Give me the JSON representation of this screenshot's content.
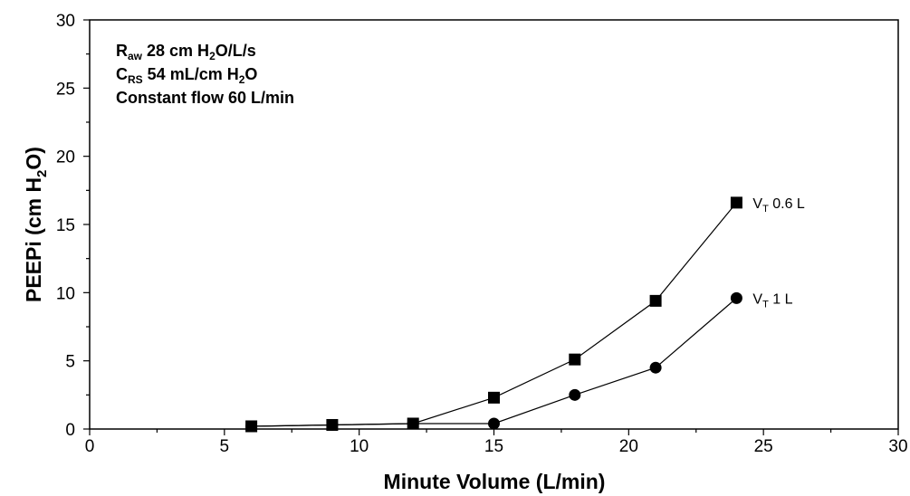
{
  "chart_data": {
    "type": "line",
    "xlabel": {
      "main": "Minute Volume (L/min)"
    },
    "ylabel": {
      "pre": "PEEPi (cm H",
      "sub": "2",
      "post": "O)"
    },
    "xlim": [
      0,
      30
    ],
    "ylim": [
      0,
      30
    ],
    "x_ticks": [
      0,
      5,
      10,
      15,
      20,
      25,
      30
    ],
    "y_ticks": [
      0,
      5,
      10,
      15,
      20,
      25,
      30
    ],
    "x_tick_labels": [
      "0",
      "5",
      "10",
      "15",
      "20",
      "25",
      "30"
    ],
    "y_tick_labels": [
      "0",
      "5",
      "10",
      "15",
      "20",
      "25",
      "30"
    ],
    "grid": false,
    "annotations": [
      {
        "pre": "R",
        "sub": "aw",
        "post": " 28 cm H",
        "sub2": "2",
        "post2": "O/L/s"
      },
      {
        "pre": "C",
        "sub": "RS",
        "post": " 54 mL/cm H",
        "sub2": "2",
        "post2": "O"
      },
      {
        "pre": "Constant flow 60 L/min",
        "sub": "",
        "post": "",
        "sub2": "",
        "post2": ""
      }
    ],
    "series": [
      {
        "name_pre": "V",
        "name_sub": "T",
        "name_post": " 0.6 L",
        "marker": "square",
        "x": [
          6,
          9,
          12,
          15,
          18,
          21,
          24
        ],
        "y": [
          0.2,
          0.3,
          0.4,
          2.3,
          5.1,
          9.4,
          16.6
        ]
      },
      {
        "name_pre": "V",
        "name_sub": "T",
        "name_post": " 1 L",
        "marker": "circle",
        "x": [
          6,
          9,
          12,
          15,
          18,
          21,
          24
        ],
        "y": [
          0.2,
          0.3,
          0.4,
          0.4,
          2.5,
          4.5,
          9.6
        ]
      }
    ]
  }
}
